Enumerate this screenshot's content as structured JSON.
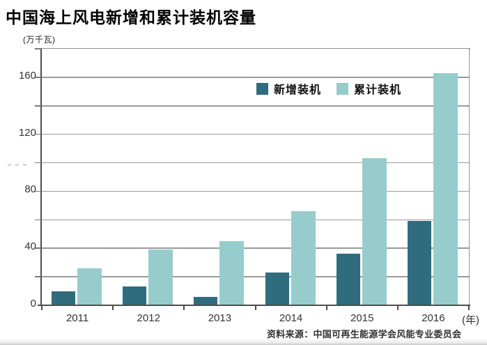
{
  "title": "中国海上风电新增和累计装机容量",
  "source": "资料来源：中国可再生能源学会风能专业委员会",
  "colors": {
    "new_installed": "#2f6c7e",
    "cumulative": "#97cccd",
    "gridline": "#9a9a9a",
    "axis": "#4d4d4d",
    "text": "#333333"
  },
  "chart_data": {
    "type": "bar",
    "title": "中国海上风电新增和累计装机容量",
    "unit_label": "(万千瓦)",
    "x_axis_suffix": "(年)",
    "categories": [
      "2011",
      "2012",
      "2013",
      "2014",
      "2015",
      "2016"
    ],
    "series": [
      {
        "name": "新增装机",
        "color": "#2f6c7e",
        "values": [
          10,
          13,
          6,
          23,
          36,
          59
        ]
      },
      {
        "name": "累计装机",
        "color": "#97cccd",
        "values": [
          26,
          39,
          45,
          66,
          103,
          163
        ]
      }
    ],
    "ylim": [
      0,
      180
    ],
    "ygrid_step": 20,
    "ytick_labels": [
      "0",
      "40",
      "80",
      "120",
      "160"
    ],
    "ytick_label_values": [
      0,
      40,
      80,
      120,
      160
    ],
    "grid": true,
    "legend_position": "top-inside"
  }
}
